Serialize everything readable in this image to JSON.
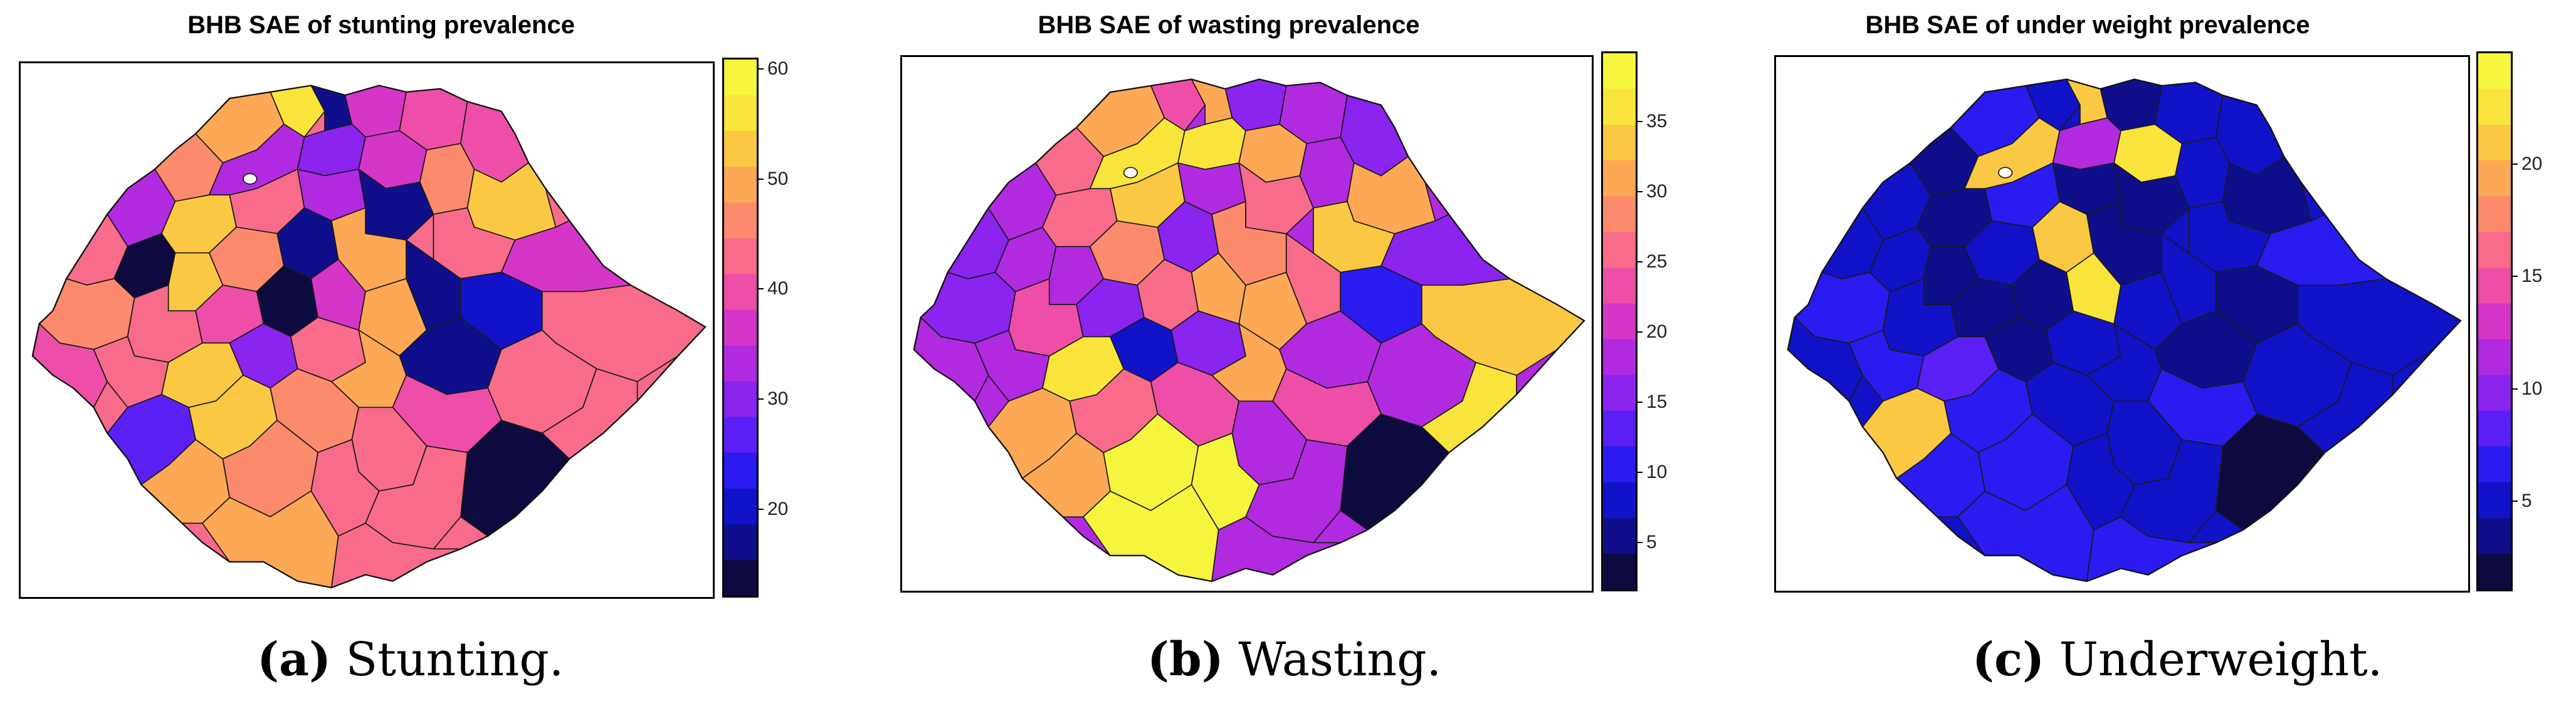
{
  "colors": {
    "scale": [
      "#0d0a3f",
      "#0f0f8c",
      "#1212c8",
      "#2a1bf0",
      "#5a20f5",
      "#8a24ee",
      "#b12ae0",
      "#d636c8",
      "#ee4ea8",
      "#f86b8a",
      "#fc8a6c",
      "#fda855",
      "#fbc843",
      "#f8e43a",
      "#f5f53e"
    ],
    "white": "#ffffff"
  },
  "panels": [
    {
      "id": "a",
      "title": "BHB SAE of stunting prevalence",
      "caption_letter": "(a)",
      "caption_text": " Stunting.",
      "legend": {
        "min": 12,
        "max": 61,
        "ticks": [
          "60",
          "50",
          "40",
          "30",
          "20"
        ],
        "tick_values": [
          60,
          50,
          40,
          30,
          20
        ]
      }
    },
    {
      "id": "b",
      "title": "BHB SAE of wasting prevalence",
      "caption_letter": "(b)",
      "caption_text": " Wasting.",
      "legend": {
        "min": 1.5,
        "max": 40,
        "ticks": [
          "35",
          "30",
          "25",
          "20",
          "15",
          "10",
          "5"
        ],
        "tick_values": [
          35,
          30,
          25,
          20,
          15,
          10,
          5
        ]
      }
    },
    {
      "id": "c",
      "title": "BHB SAE of under weight prevalence",
      "caption_letter": "(c)",
      "caption_text": " Underweight.",
      "legend": {
        "min": 1,
        "max": 25,
        "ticks": [
          "20",
          "15",
          "10",
          "5"
        ],
        "tick_values": [
          20,
          15,
          10,
          5
        ]
      }
    }
  ]
}
